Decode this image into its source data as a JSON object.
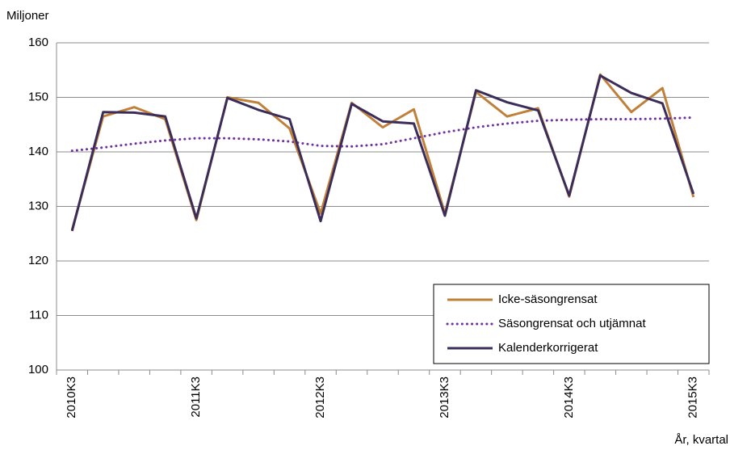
{
  "chart_data": {
    "type": "line",
    "y_label": "Miljoner",
    "x_label": "År, kvartal",
    "categories": [
      "2010K3",
      null,
      null,
      null,
      "2011K3",
      null,
      null,
      null,
      "2012K3",
      null,
      null,
      null,
      "2013K3",
      null,
      null,
      null,
      "2014K3",
      null,
      null,
      null,
      "2015K3"
    ],
    "series": [
      {
        "name": "Icke-säsongrensat",
        "color": "#c0803a",
        "style": "solid",
        "values": [
          125.7,
          146.5,
          148.2,
          146.0,
          127.5,
          150.0,
          149.0,
          144.3,
          128.7,
          149.0,
          144.5,
          147.8,
          128.7,
          151.0,
          146.5,
          148.0,
          131.8,
          154.2,
          147.3,
          151.7,
          131.7
        ]
      },
      {
        "name": "Säsongrensat och utjämnat",
        "color": "#7030a0",
        "style": "dotted",
        "values": [
          140.2,
          140.8,
          141.5,
          142.1,
          142.5,
          142.5,
          142.3,
          141.9,
          141.1,
          141.0,
          141.4,
          142.5,
          143.6,
          144.5,
          145.2,
          145.7,
          145.9,
          146.0,
          146.0,
          146.1,
          146.3
        ]
      },
      {
        "name": "Kalenderkorrigerat",
        "color": "#3b2d5a",
        "style": "solid",
        "values": [
          125.5,
          147.3,
          147.2,
          146.5,
          127.8,
          149.9,
          147.7,
          146.0,
          127.3,
          148.8,
          145.6,
          145.2,
          128.3,
          151.3,
          149.1,
          147.6,
          132.0,
          154.0,
          150.8,
          148.9,
          132.3
        ]
      }
    ],
    "ylim": [
      100,
      160
    ],
    "yticks": [
      100,
      110,
      120,
      130,
      140,
      150,
      160
    ],
    "grid": true,
    "legend": "lower right"
  }
}
